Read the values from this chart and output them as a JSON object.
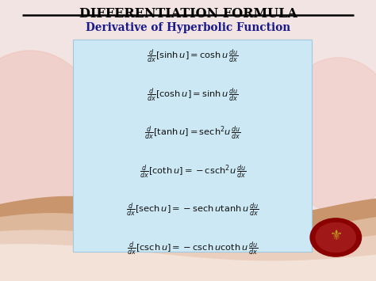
{
  "title": "DIFFERENTIATION FORMULA",
  "subtitle": "Derivative of Hyperbolic Function",
  "bg_color": "#f2e4e2",
  "box_color": "#cce8f4",
  "title_color": "#000000",
  "subtitle_color": "#1a1a8c",
  "formula_color": "#111111",
  "figsize": [
    4.74,
    3.55
  ],
  "dpi": 100,
  "wave_colors": [
    "#c8956c",
    "#deb89a",
    "#eacfbf",
    "#f3e2d8"
  ],
  "blob_color": "#f0c0b8",
  "seal_color": "#8b0000",
  "seal_accent": "#c0a020"
}
